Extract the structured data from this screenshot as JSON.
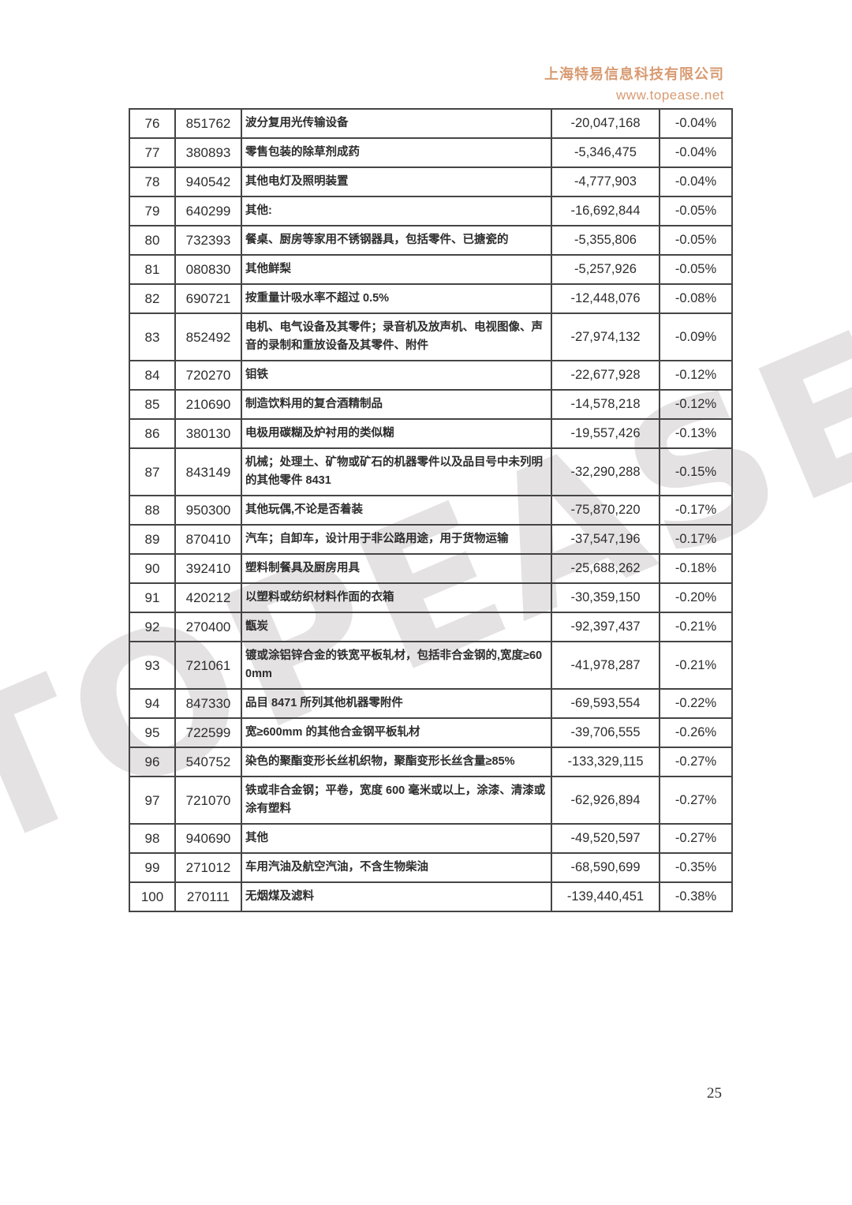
{
  "header": {
    "company": "上海特易信息科技有限公司",
    "website": "www.topease.net",
    "accent_color": "#D89B72"
  },
  "watermark": {
    "text": "TOPEASE",
    "color": "#E4E2E2"
  },
  "footer": {
    "page_number": "25"
  },
  "table": {
    "columns": [
      "rank",
      "hs_code",
      "description",
      "value",
      "share_pct"
    ],
    "rows": [
      {
        "rank": "76",
        "code": "851762",
        "description": "波分复用光传输设备",
        "value": "-20,047,168",
        "percent": "-0.04%"
      },
      {
        "rank": "77",
        "code": "380893",
        "description": "零售包装的除草剂成药",
        "value": "-5,346,475",
        "percent": "-0.04%"
      },
      {
        "rank": "78",
        "code": "940542",
        "description": "其他电灯及照明装置",
        "value": "-4,777,903",
        "percent": "-0.04%"
      },
      {
        "rank": "79",
        "code": "640299",
        "description": "其他:",
        "value": "-16,692,844",
        "percent": "-0.05%"
      },
      {
        "rank": "80",
        "code": "732393",
        "description": "餐桌、厨房等家用不锈钢器具，包括零件、已搪瓷的",
        "value": "-5,355,806",
        "percent": "-0.05%"
      },
      {
        "rank": "81",
        "code": "080830",
        "description": "其他鲜梨",
        "value": "-5,257,926",
        "percent": "-0.05%"
      },
      {
        "rank": "82",
        "code": "690721",
        "description": "按重量计吸水率不超过 0.5%",
        "value": "-12,448,076",
        "percent": "-0.08%"
      },
      {
        "rank": "83",
        "code": "852492",
        "description": "电机、电气设备及其零件；录音机及放声机、电视图像、声音的录制和重放设备及其零件、附件",
        "value": "-27,974,132",
        "percent": "-0.09%"
      },
      {
        "rank": "84",
        "code": "720270",
        "description": "钼铁",
        "value": "-22,677,928",
        "percent": "-0.12%"
      },
      {
        "rank": "85",
        "code": "210690",
        "description": "制造饮料用的复合酒精制品",
        "value": "-14,578,218",
        "percent": "-0.12%"
      },
      {
        "rank": "86",
        "code": "380130",
        "description": "电极用碳糊及炉衬用的类似糊",
        "value": "-19,557,426",
        "percent": "-0.13%"
      },
      {
        "rank": "87",
        "code": "843149",
        "description": "机械；处理土、矿物或矿石的机器零件以及品目号中未列明的其他零件 8431",
        "value": "-32,290,288",
        "percent": "-0.15%"
      },
      {
        "rank": "88",
        "code": "950300",
        "description": "其他玩偶,不论是否着装",
        "value": "-75,870,220",
        "percent": "-0.17%"
      },
      {
        "rank": "89",
        "code": "870410",
        "description": "汽车；自卸车，设计用于非公路用途，用于货物运输",
        "value": "-37,547,196",
        "percent": "-0.17%"
      },
      {
        "rank": "90",
        "code": "392410",
        "description": "塑料制餐具及厨房用具",
        "value": "-25,688,262",
        "percent": "-0.18%"
      },
      {
        "rank": "91",
        "code": "420212",
        "description": "以塑料或纺织材料作面的衣箱",
        "value": "-30,359,150",
        "percent": "-0.20%"
      },
      {
        "rank": "92",
        "code": "270400",
        "description": "甑炭",
        "value": "-92,397,437",
        "percent": "-0.21%"
      },
      {
        "rank": "93",
        "code": "721061",
        "description": "镀或涂铝锌合金的铁宽平板轧材，包括非合金钢的,宽度≥600mm",
        "value": "-41,978,287",
        "percent": "-0.21%"
      },
      {
        "rank": "94",
        "code": "847330",
        "description": "品目 8471 所列其他机器零附件",
        "value": "-69,593,554",
        "percent": "-0.22%"
      },
      {
        "rank": "95",
        "code": "722599",
        "description": "宽≥600mm 的其他合金钢平板轧材",
        "value": "-39,706,555",
        "percent": "-0.26%"
      },
      {
        "rank": "96",
        "code": "540752",
        "description": "染色的聚酯变形长丝机织物，聚酯变形长丝含量≥85%",
        "value": "-133,329,115",
        "percent": "-0.27%"
      },
      {
        "rank": "97",
        "code": "721070",
        "description": "铁或非合金钢；平卷，宽度 600 毫米或以上，涂漆、清漆或涂有塑料",
        "value": "-62,926,894",
        "percent": "-0.27%"
      },
      {
        "rank": "98",
        "code": "940690",
        "description": "其他",
        "value": "-49,520,597",
        "percent": "-0.27%"
      },
      {
        "rank": "99",
        "code": "271012",
        "description": "车用汽油及航空汽油，不含生物柴油",
        "value": "-68,590,699",
        "percent": "-0.35%"
      },
      {
        "rank": "100",
        "code": "270111",
        "description": "无烟煤及滤料",
        "value": "-139,440,451",
        "percent": "-0.38%"
      }
    ]
  }
}
